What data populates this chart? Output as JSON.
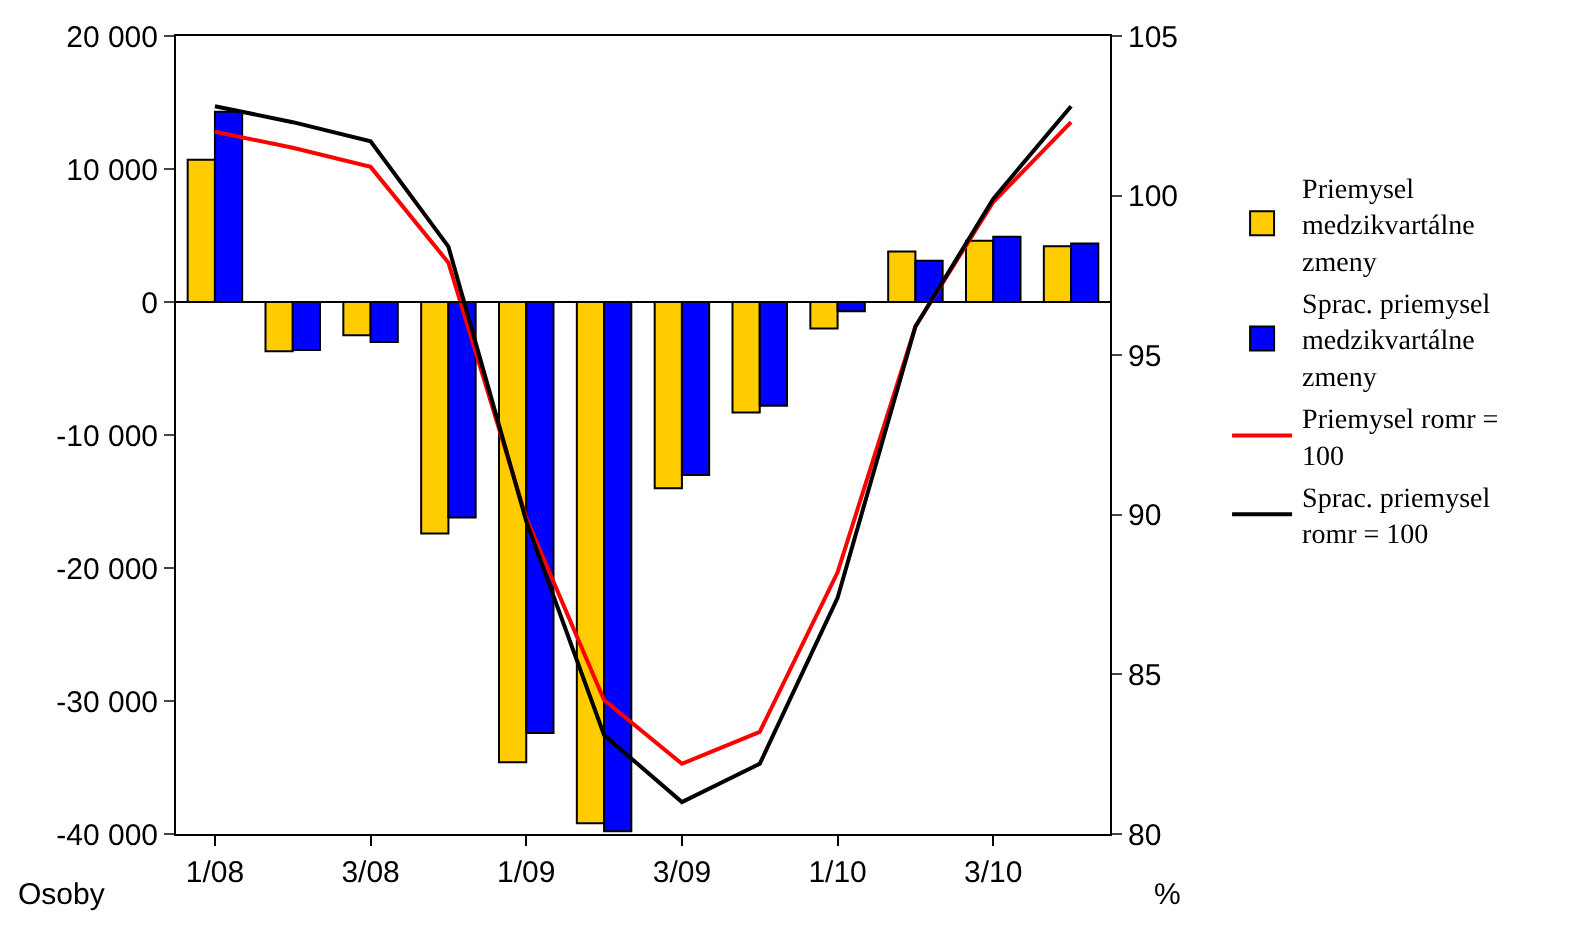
{
  "chart_data": {
    "type": "bar",
    "categories": [
      "1/08",
      null,
      "3/08",
      null,
      "1/09",
      null,
      "3/09",
      null,
      "1/10",
      null,
      "3/10",
      null
    ],
    "series": [
      {
        "name": "Priemysel medzikvartálne zmeny",
        "color": "#ffcc00",
        "values": [
          10700,
          -3700,
          -2500,
          -17400,
          -34600,
          -39200,
          -14000,
          -8300,
          -2000,
          3800,
          4600,
          4200
        ]
      },
      {
        "name": "Sprac. priemysel medzikvartálne zmeny",
        "color": "#0000ff",
        "values": [
          14300,
          -3600,
          -3000,
          -16200,
          -32400,
          -39800,
          -13000,
          -7800,
          -700,
          3100,
          4900,
          4400
        ]
      },
      {
        "name": "Priemysel romr = 100",
        "type": "line",
        "axis": "y2",
        "color": "#ff0000",
        "values": [
          102,
          101.5,
          100.9,
          97.9,
          89.9,
          84.2,
          82.2,
          83.2,
          88.2,
          95.9,
          99.8,
          102.3
        ]
      },
      {
        "name": "Sprac. priemysel romr = 100",
        "type": "line",
        "axis": "y2",
        "color": "#000000",
        "values": [
          102.8,
          102.3,
          101.7,
          98.4,
          89.8,
          83.1,
          81,
          82.2,
          87.4,
          95.9,
          99.9,
          102.8
        ]
      }
    ],
    "ylabel": "Osoby",
    "y2label": "%",
    "ylim": [
      -40000,
      20000
    ],
    "yticks": [
      {
        "value": -40000,
        "label": "-40 000"
      },
      {
        "value": -30000,
        "label": "-30 000"
      },
      {
        "value": -20000,
        "label": "-20 000"
      },
      {
        "value": -10000,
        "label": "-10 000"
      },
      0,
      {
        "value": 10000,
        "label": "10 000"
      },
      {
        "value": 20000,
        "label": "20 000"
      }
    ],
    "y2lim": [
      80,
      105
    ],
    "y2ticks": [
      80,
      85,
      90,
      95,
      100,
      105
    ],
    "ref_lines": [
      {
        "axis": "y",
        "value": 0,
        "color": "#000000"
      }
    ],
    "grid": false,
    "legend": "right",
    "line_style": "solid",
    "marker": "none"
  }
}
